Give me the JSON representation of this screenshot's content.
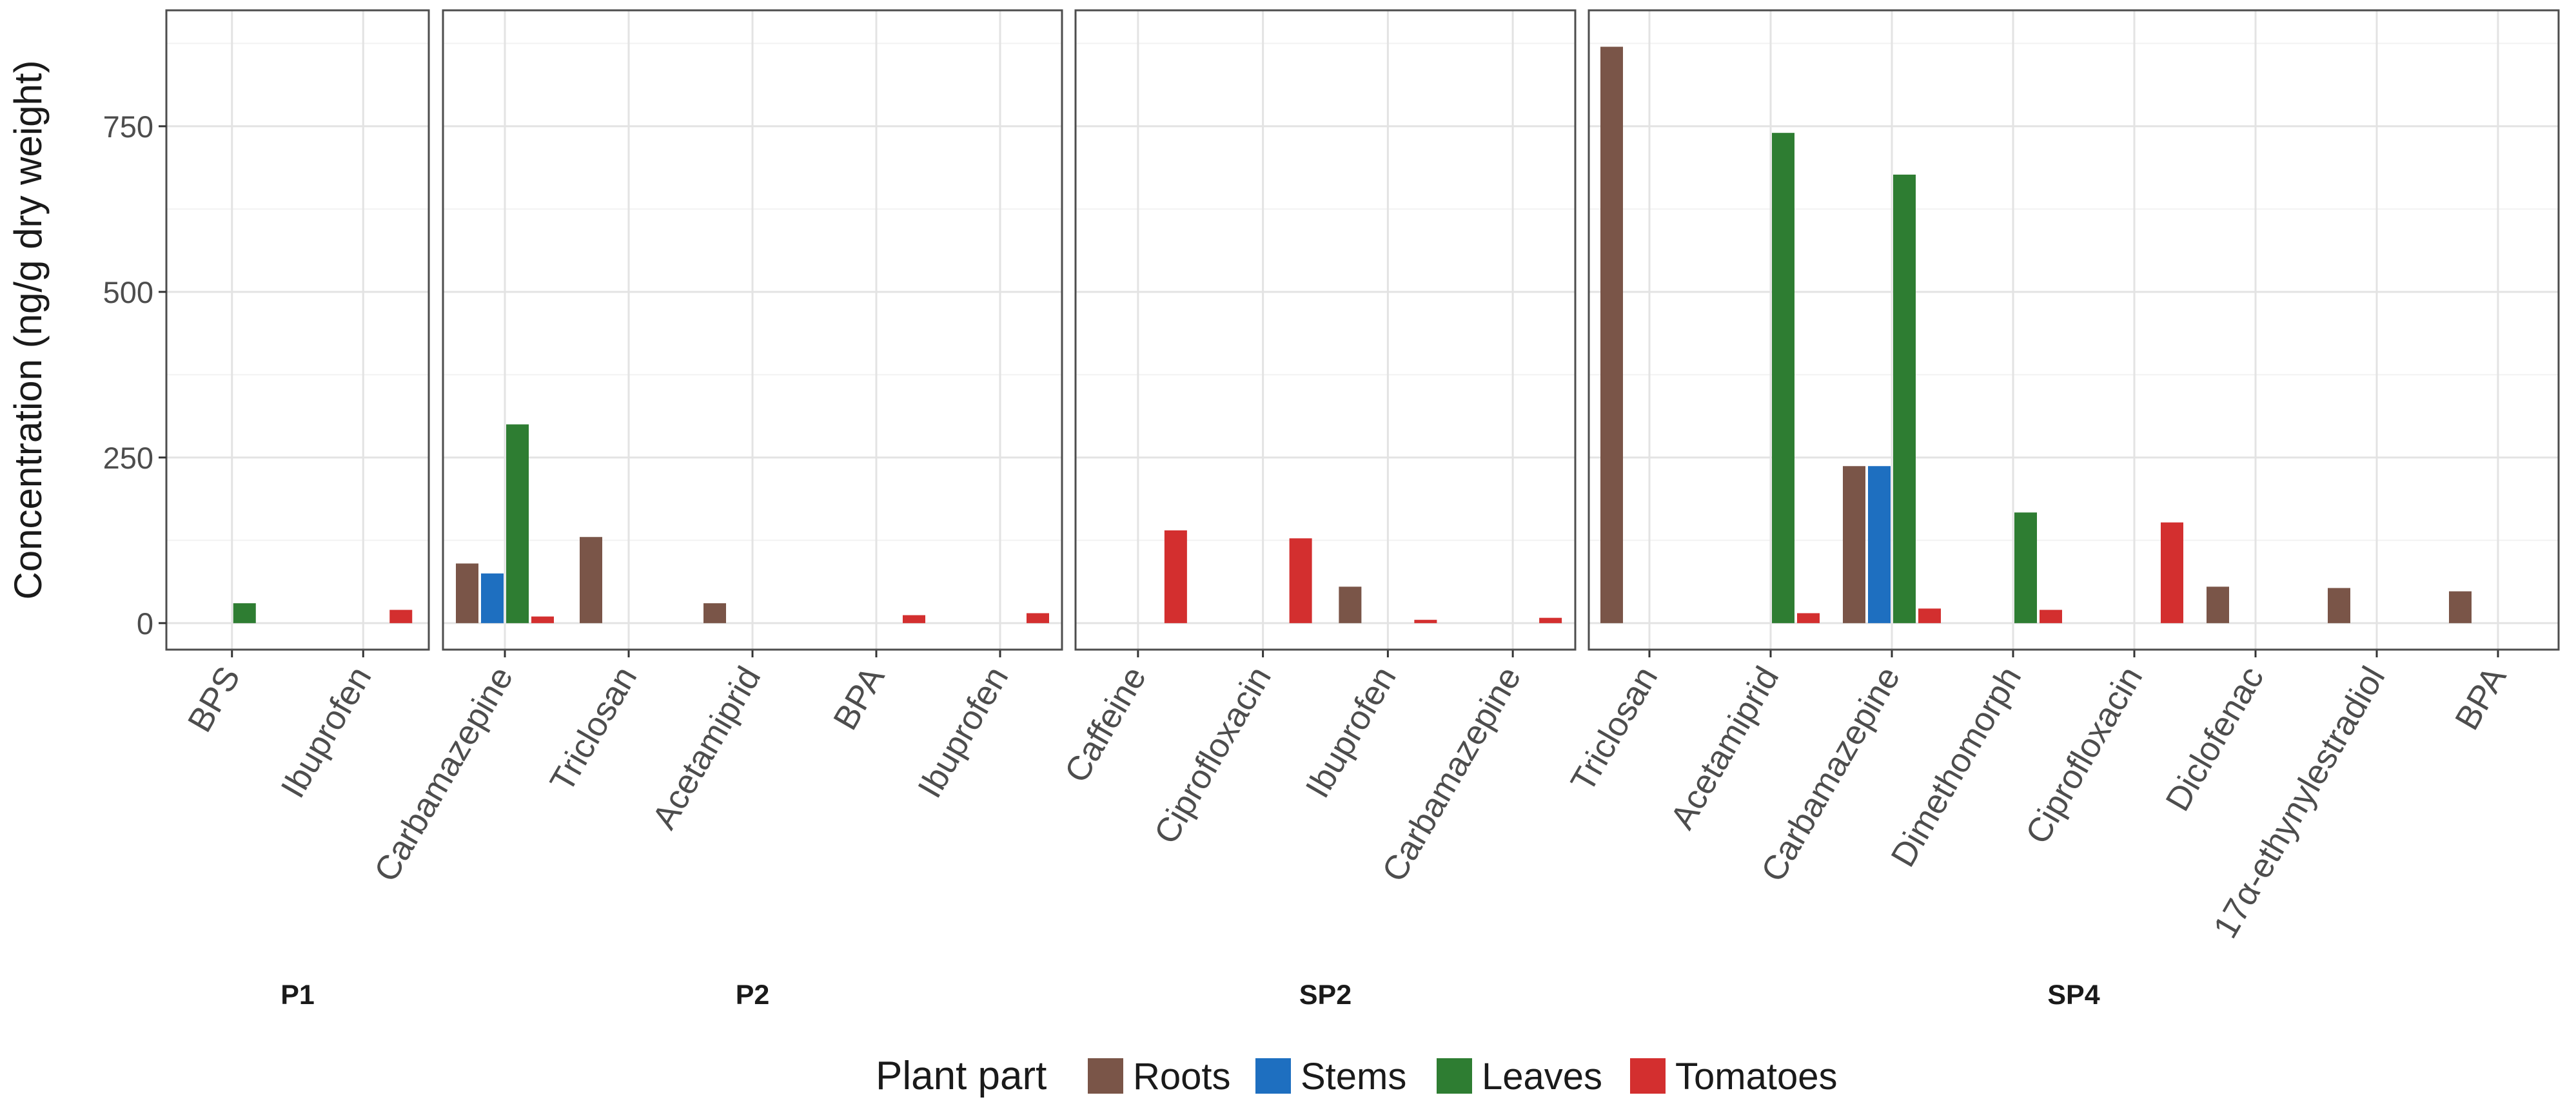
{
  "chart_data": {
    "type": "bar",
    "ylabel": "Concentration (ng/g dry weight)",
    "ylim": [
      -40,
      925
    ],
    "yticks": [
      0,
      250,
      500,
      750
    ],
    "grid": true,
    "legend": {
      "title": "Plant part",
      "position": "bottom",
      "entries": [
        "Roots",
        "Stems",
        "Leaves",
        "Tomatoes"
      ]
    },
    "colors": {
      "Roots": "#7a5548",
      "Stems": "#1e6fc0",
      "Leaves": "#2e7d32",
      "Tomatoes": "#d32f2f"
    },
    "series_order": [
      "Roots",
      "Stems",
      "Leaves",
      "Tomatoes"
    ],
    "panels": [
      {
        "name": "P1",
        "categories": [
          {
            "label": "BPS",
            "values": {
              "Leaves": 30
            }
          },
          {
            "label": "Ibuprofen",
            "values": {
              "Tomatoes": 20
            }
          }
        ]
      },
      {
        "name": "P2",
        "categories": [
          {
            "label": "Carbamazepine",
            "values": {
              "Roots": 90,
              "Stems": 75,
              "Leaves": 300,
              "Tomatoes": 10
            }
          },
          {
            "label": "Triclosan",
            "values": {
              "Roots": 130
            }
          },
          {
            "label": "Acetamiprid",
            "values": {
              "Roots": 30
            }
          },
          {
            "label": "BPA",
            "values": {
              "Tomatoes": 12
            }
          },
          {
            "label": "Ibuprofen",
            "values": {
              "Tomatoes": 15
            }
          }
        ]
      },
      {
        "name": "SP2",
        "categories": [
          {
            "label": "Caffeine",
            "values": {
              "Tomatoes": 140
            }
          },
          {
            "label": "Ciprofloxacin",
            "values": {
              "Tomatoes": 128
            }
          },
          {
            "label": "Ibuprofen",
            "values": {
              "Roots": 55,
              "Tomatoes": 5
            }
          },
          {
            "label": "Carbamazepine",
            "values": {
              "Tomatoes": 8
            }
          }
        ]
      },
      {
        "name": "SP4",
        "categories": [
          {
            "label": "Triclosan",
            "values": {
              "Roots": 870
            }
          },
          {
            "label": "Acetamiprid",
            "values": {
              "Leaves": 740,
              "Tomatoes": 15
            }
          },
          {
            "label": "Carbamazepine",
            "values": {
              "Roots": 237,
              "Stems": 237,
              "Leaves": 677,
              "Tomatoes": 22
            }
          },
          {
            "label": "Dimethomorph",
            "values": {
              "Leaves": 167,
              "Tomatoes": 20
            }
          },
          {
            "label": "Ciprofloxacin",
            "values": {
              "Tomatoes": 152
            }
          },
          {
            "label": "Diclofenac",
            "values": {
              "Roots": 55
            }
          },
          {
            "label": "17α-ethynylestradiol",
            "values": {
              "Roots": 53
            }
          },
          {
            "label": "BPA",
            "values": {
              "Roots": 48
            }
          }
        ]
      }
    ]
  }
}
